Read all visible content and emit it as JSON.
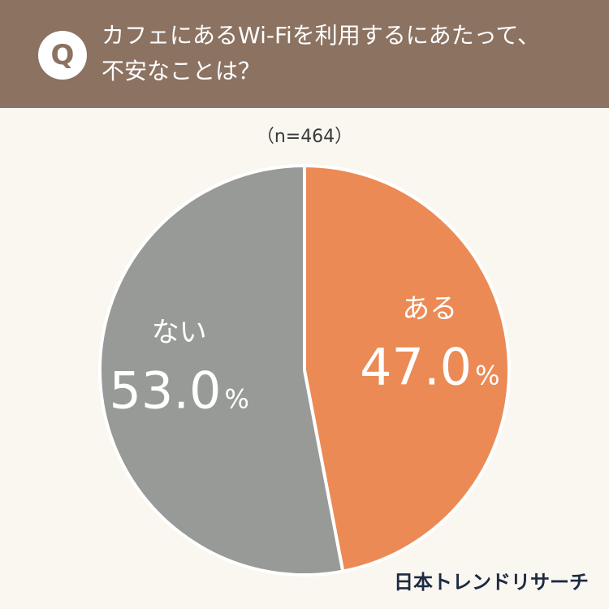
{
  "header": {
    "badge": "Q",
    "question_line1": "カフェにあるWi-Fiを利用するにあたって、",
    "question_line2": "不安なことは？"
  },
  "sample_size": "（n=464）",
  "brand": "日本トレンドリサーチ",
  "colors": {
    "header_bg": "#8b7261",
    "page_bg": "#faf7f0",
    "aru": "#ec8a55",
    "nai": "#989a98",
    "brand": "#1d2a44"
  },
  "chart_data": {
    "type": "pie",
    "sample": "n=464",
    "slices": [
      {
        "label": "ある",
        "value": 47.0,
        "display": "47.0",
        "unit": "%",
        "color": "#ec8a55"
      },
      {
        "label": "ない",
        "value": 53.0,
        "display": "53.0",
        "unit": "%",
        "color": "#989a98"
      }
    ],
    "start": "12 o'clock",
    "direction": "clockwise"
  }
}
